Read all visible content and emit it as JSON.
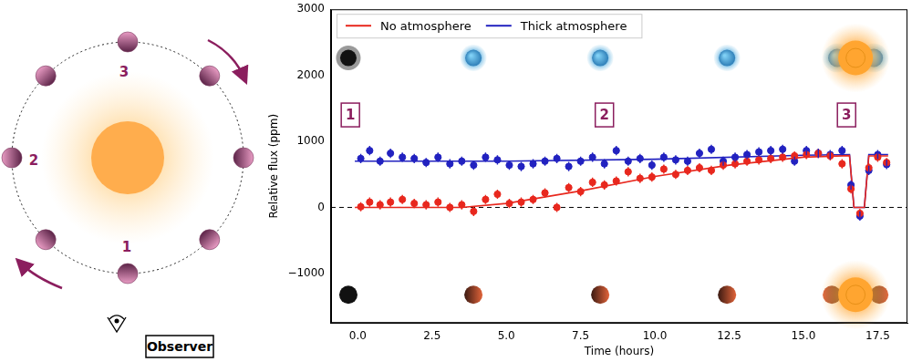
{
  "diagram": {
    "positions": [
      "1",
      "2",
      "3"
    ],
    "observer": "Observer"
  },
  "chart_data": {
    "type": "scatter",
    "x_label": "Time (hours)",
    "y_label": "Relative flux (ppm)",
    "xlim": [
      -0.9,
      18.5
    ],
    "ylim": [
      -1750,
      3000
    ],
    "xticks": [
      {
        "value": 0,
        "label": "0.0"
      },
      2.5,
      {
        "value": 5,
        "label": "5.0"
      },
      7.5,
      {
        "value": 10,
        "label": "10.0"
      },
      12.5,
      {
        "value": 15,
        "label": "15.0"
      },
      17.5
    ],
    "yticks": [
      {
        "value": -1000,
        "label": "−1000"
      },
      0,
      1000,
      2000,
      3000
    ],
    "grid": false,
    "legend": "upper left",
    "reference_line": {
      "y": 0,
      "line_style": "dashed",
      "color": "#000000"
    },
    "annotations": [
      {
        "text": "1",
        "x": -0.25,
        "y": 1400
      },
      {
        "text": "2",
        "x": 8.3,
        "y": 1400
      },
      {
        "text": "3",
        "x": 16.45,
        "y": 1400
      }
    ],
    "series": [
      {
        "name": "No atmosphere",
        "color": "#e8281e",
        "marker": "circle",
        "line_style": "solid",
        "x": [
          0.1,
          0.4,
          0.75,
          1.1,
          1.5,
          1.9,
          2.3,
          2.7,
          3.1,
          3.5,
          3.9,
          4.3,
          4.7,
          5.1,
          5.5,
          5.9,
          6.3,
          6.7,
          7.1,
          7.5,
          7.9,
          8.3,
          8.7,
          9.1,
          9.5,
          9.9,
          10.3,
          10.7,
          11.1,
          11.5,
          11.9,
          12.3,
          12.7,
          13.1,
          13.5,
          13.9,
          14.3,
          14.7,
          15.1,
          15.5,
          15.9,
          16.3,
          16.6,
          16.9,
          17.2,
          17.5,
          17.8
        ],
        "values": [
          10,
          80,
          40,
          80,
          120,
          60,
          40,
          80,
          0,
          40,
          -60,
          120,
          200,
          60,
          80,
          120,
          220,
          0,
          300,
          240,
          380,
          340,
          400,
          540,
          440,
          460,
          580,
          500,
          560,
          600,
          560,
          640,
          660,
          700,
          720,
          740,
          760,
          780,
          800,
          820,
          780,
          660,
          280,
          -90,
          600,
          760,
          680
        ],
        "error": 70,
        "model_x": [
          -0.1,
          3.5,
          5,
          7.5,
          10,
          12.5,
          15,
          16.55,
          16.7,
          17.05,
          17.2,
          17.85
        ],
        "model_values": [
          0,
          0,
          60,
          250,
          470,
          640,
          760,
          785,
          0,
          0,
          780,
          780
        ]
      },
      {
        "name": "Thick atmosphere",
        "color": "#2222c0",
        "marker": "circle",
        "line_style": "solid",
        "x": [
          0.1,
          0.4,
          0.75,
          1.1,
          1.5,
          1.9,
          2.3,
          2.7,
          3.1,
          3.5,
          3.9,
          4.3,
          4.7,
          5.1,
          5.5,
          5.9,
          6.3,
          6.7,
          7.1,
          7.5,
          7.9,
          8.3,
          8.7,
          9.1,
          9.5,
          9.9,
          10.3,
          10.7,
          11.1,
          11.5,
          11.9,
          12.3,
          12.7,
          13.1,
          13.5,
          13.9,
          14.3,
          14.7,
          15.1,
          15.5,
          15.9,
          16.3,
          16.6,
          16.9,
          17.2,
          17.5,
          17.8
        ],
        "values": [
          740,
          860,
          700,
          820,
          760,
          740,
          680,
          760,
          660,
          700,
          640,
          760,
          720,
          640,
          620,
          660,
          700,
          740,
          620,
          700,
          760,
          660,
          860,
          700,
          740,
          640,
          760,
          720,
          700,
          820,
          880,
          700,
          760,
          800,
          840,
          860,
          880,
          700,
          860,
          820,
          800,
          860,
          340,
          -130,
          560,
          800,
          650
        ],
        "error": 70,
        "model_x": [
          -0.1,
          5,
          10,
          15,
          16.55,
          16.7,
          17.05,
          17.2,
          17.85
        ],
        "model_values": [
          700,
          700,
          730,
          790,
          800,
          0,
          0,
          800,
          800
        ]
      }
    ]
  }
}
